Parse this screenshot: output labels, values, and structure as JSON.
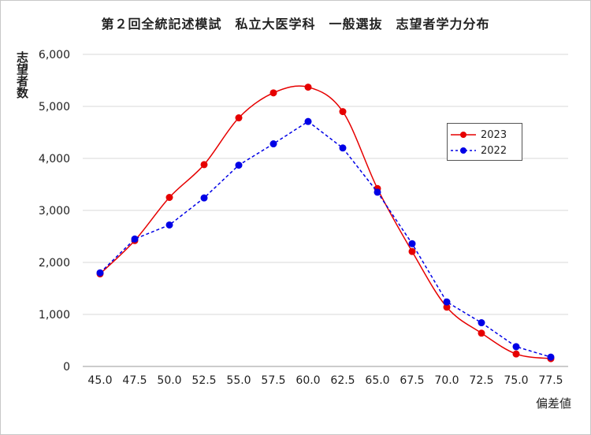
{
  "chart_data": {
    "type": "line",
    "title": "第２回全統記述模試　私立大医学科　一般選抜　志望者学力分布",
    "xlabel": "偏差値",
    "ylabel": "志望者数",
    "x": [
      "45.0",
      "47.5",
      "50.0",
      "52.5",
      "55.0",
      "57.5",
      "60.0",
      "62.5",
      "65.0",
      "67.5",
      "70.0",
      "72.5",
      "75.0",
      "77.5"
    ],
    "ylim": [
      0,
      6000
    ],
    "yticks": [
      "0",
      "1,000",
      "2,000",
      "3,000",
      "4,000",
      "5,000",
      "6,000"
    ],
    "grid": true,
    "legend_position": "right",
    "series": [
      {
        "name": "2023",
        "color": "#e60000",
        "style": "solid-smooth",
        "values": [
          1780,
          2420,
          3250,
          3880,
          4780,
          5260,
          5370,
          4900,
          3420,
          2210,
          1140,
          640,
          240,
          150
        ]
      },
      {
        "name": "2022",
        "color": "#0000e6",
        "style": "dashed",
        "values": [
          1800,
          2450,
          2720,
          3240,
          3870,
          4280,
          4710,
          4200,
          3350,
          2360,
          1240,
          840,
          380,
          180
        ]
      }
    ]
  }
}
